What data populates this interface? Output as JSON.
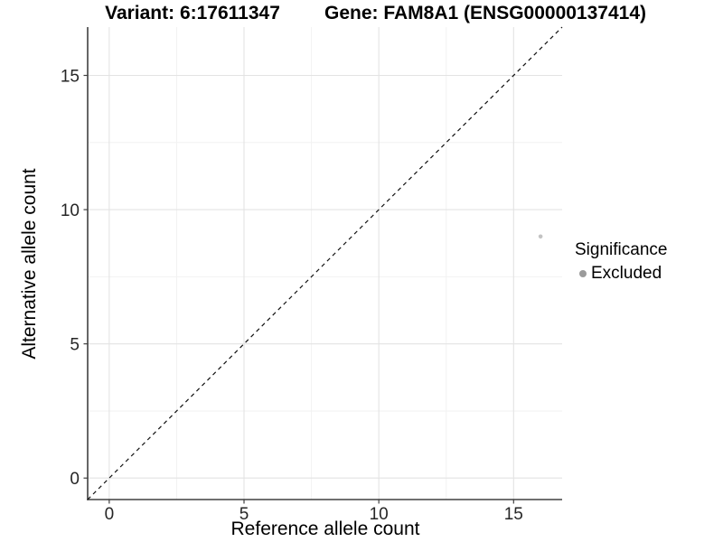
{
  "chart_data": {
    "type": "scatter",
    "title_left": "Variant: 6:17611347",
    "title_right": "Gene: FAM8A1 (ENSG00000137414)",
    "xlabel": "Reference allele count",
    "ylabel": "Alternative allele count",
    "xlim": [
      -0.8,
      16.8
    ],
    "ylim": [
      -0.8,
      16.8
    ],
    "x_ticks": [
      0,
      5,
      10,
      15
    ],
    "y_ticks": [
      0,
      5,
      10,
      15
    ],
    "x_minor_ticks": [
      2.5,
      7.5,
      12.5
    ],
    "y_minor_ticks": [
      2.5,
      7.5,
      12.5
    ],
    "grid": "major+minor",
    "reference_line": {
      "slope": 1,
      "intercept": 0,
      "style": "dashed",
      "color": "#111111"
    },
    "series": [
      {
        "name": "Excluded",
        "point_color": "#c3c3c3",
        "points": [
          {
            "x": 16,
            "y": 9
          }
        ]
      }
    ],
    "legend": {
      "title": "Significance",
      "position": "right",
      "items": [
        {
          "label": "Excluded",
          "color": "#9b9b9b"
        }
      ]
    }
  },
  "colors": {
    "background": "#ffffff",
    "grid_major": "#e3e3e3",
    "grid_minor": "#f2f2f2",
    "axis_line": "#404040",
    "tick_label": "#262626"
  }
}
